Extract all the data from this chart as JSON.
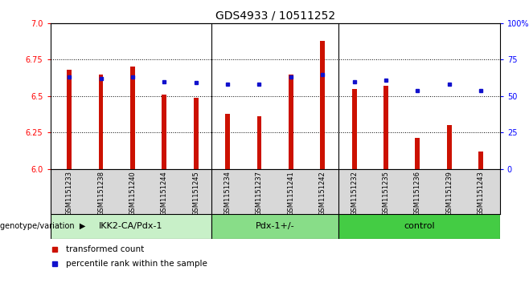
{
  "title": "GDS4933 / 10511252",
  "samples": [
    "GSM1151233",
    "GSM1151238",
    "GSM1151240",
    "GSM1151244",
    "GSM1151245",
    "GSM1151234",
    "GSM1151237",
    "GSM1151241",
    "GSM1151242",
    "GSM1151232",
    "GSM1151235",
    "GSM1151236",
    "GSM1151239",
    "GSM1151243"
  ],
  "transformed_count": [
    6.68,
    6.65,
    6.7,
    6.51,
    6.49,
    6.38,
    6.36,
    6.65,
    6.88,
    6.55,
    6.57,
    6.21,
    6.3,
    6.12
  ],
  "percentile_rank": [
    63,
    62,
    63,
    60,
    59,
    58,
    58,
    63,
    65,
    60,
    61,
    54,
    58,
    54
  ],
  "group_info": [
    {
      "label": "IKK2-CA/Pdx-1",
      "start": 0,
      "end": 4,
      "color": "#c8f0c8"
    },
    {
      "label": "Pdx-1+/-",
      "start": 5,
      "end": 8,
      "color": "#88dd88"
    },
    {
      "label": "control",
      "start": 9,
      "end": 13,
      "color": "#44cc44"
    }
  ],
  "group_boundaries": [
    4.5,
    8.5
  ],
  "ylim_left": [
    6.0,
    7.0
  ],
  "ylim_right": [
    0,
    100
  ],
  "yticks_left": [
    6.0,
    6.25,
    6.5,
    6.75,
    7.0
  ],
  "yticks_right": [
    0,
    25,
    50,
    75,
    100
  ],
  "bar_color": "#cc1100",
  "dot_color": "#1111cc",
  "plot_bg_color": "#ffffff",
  "name_area_color": "#d8d8d8",
  "genotype_label": "genotype/variation",
  "legend_bar": "transformed count",
  "legend_dot": "percentile rank within the sample",
  "title_fontsize": 10,
  "tick_fontsize": 7,
  "bar_width": 0.15
}
